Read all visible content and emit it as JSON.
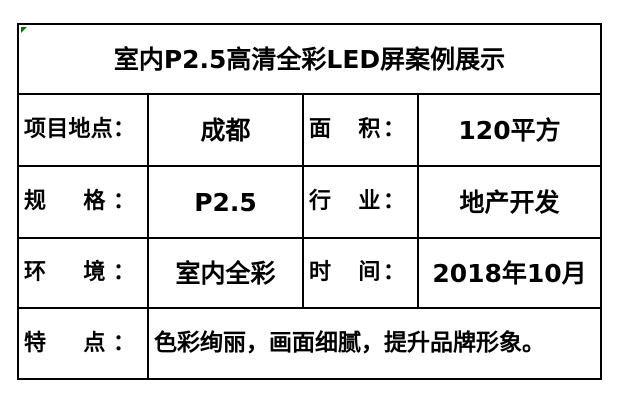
{
  "table": {
    "title": "室内P2.5高清全彩LED屏案例展示",
    "rows": [
      {
        "label1": "项目地点：",
        "value1": "成都",
        "label2": "面　积：",
        "value2": "120平方"
      },
      {
        "label1": "规　格：",
        "value1": "P2.5",
        "label2": "行　业：",
        "value2": "地产开发"
      },
      {
        "label1": "环　境：",
        "value1": "室内全彩",
        "label2": "时　间：",
        "value2": "2018年10月"
      }
    ],
    "feature": {
      "label": "特　点：",
      "value": "色彩绚丽，画面细腻，提升品牌形象。"
    },
    "colors": {
      "border": "#000000",
      "text": "#000000",
      "background": "#ffffff",
      "corner_marker": "#007a00"
    }
  }
}
